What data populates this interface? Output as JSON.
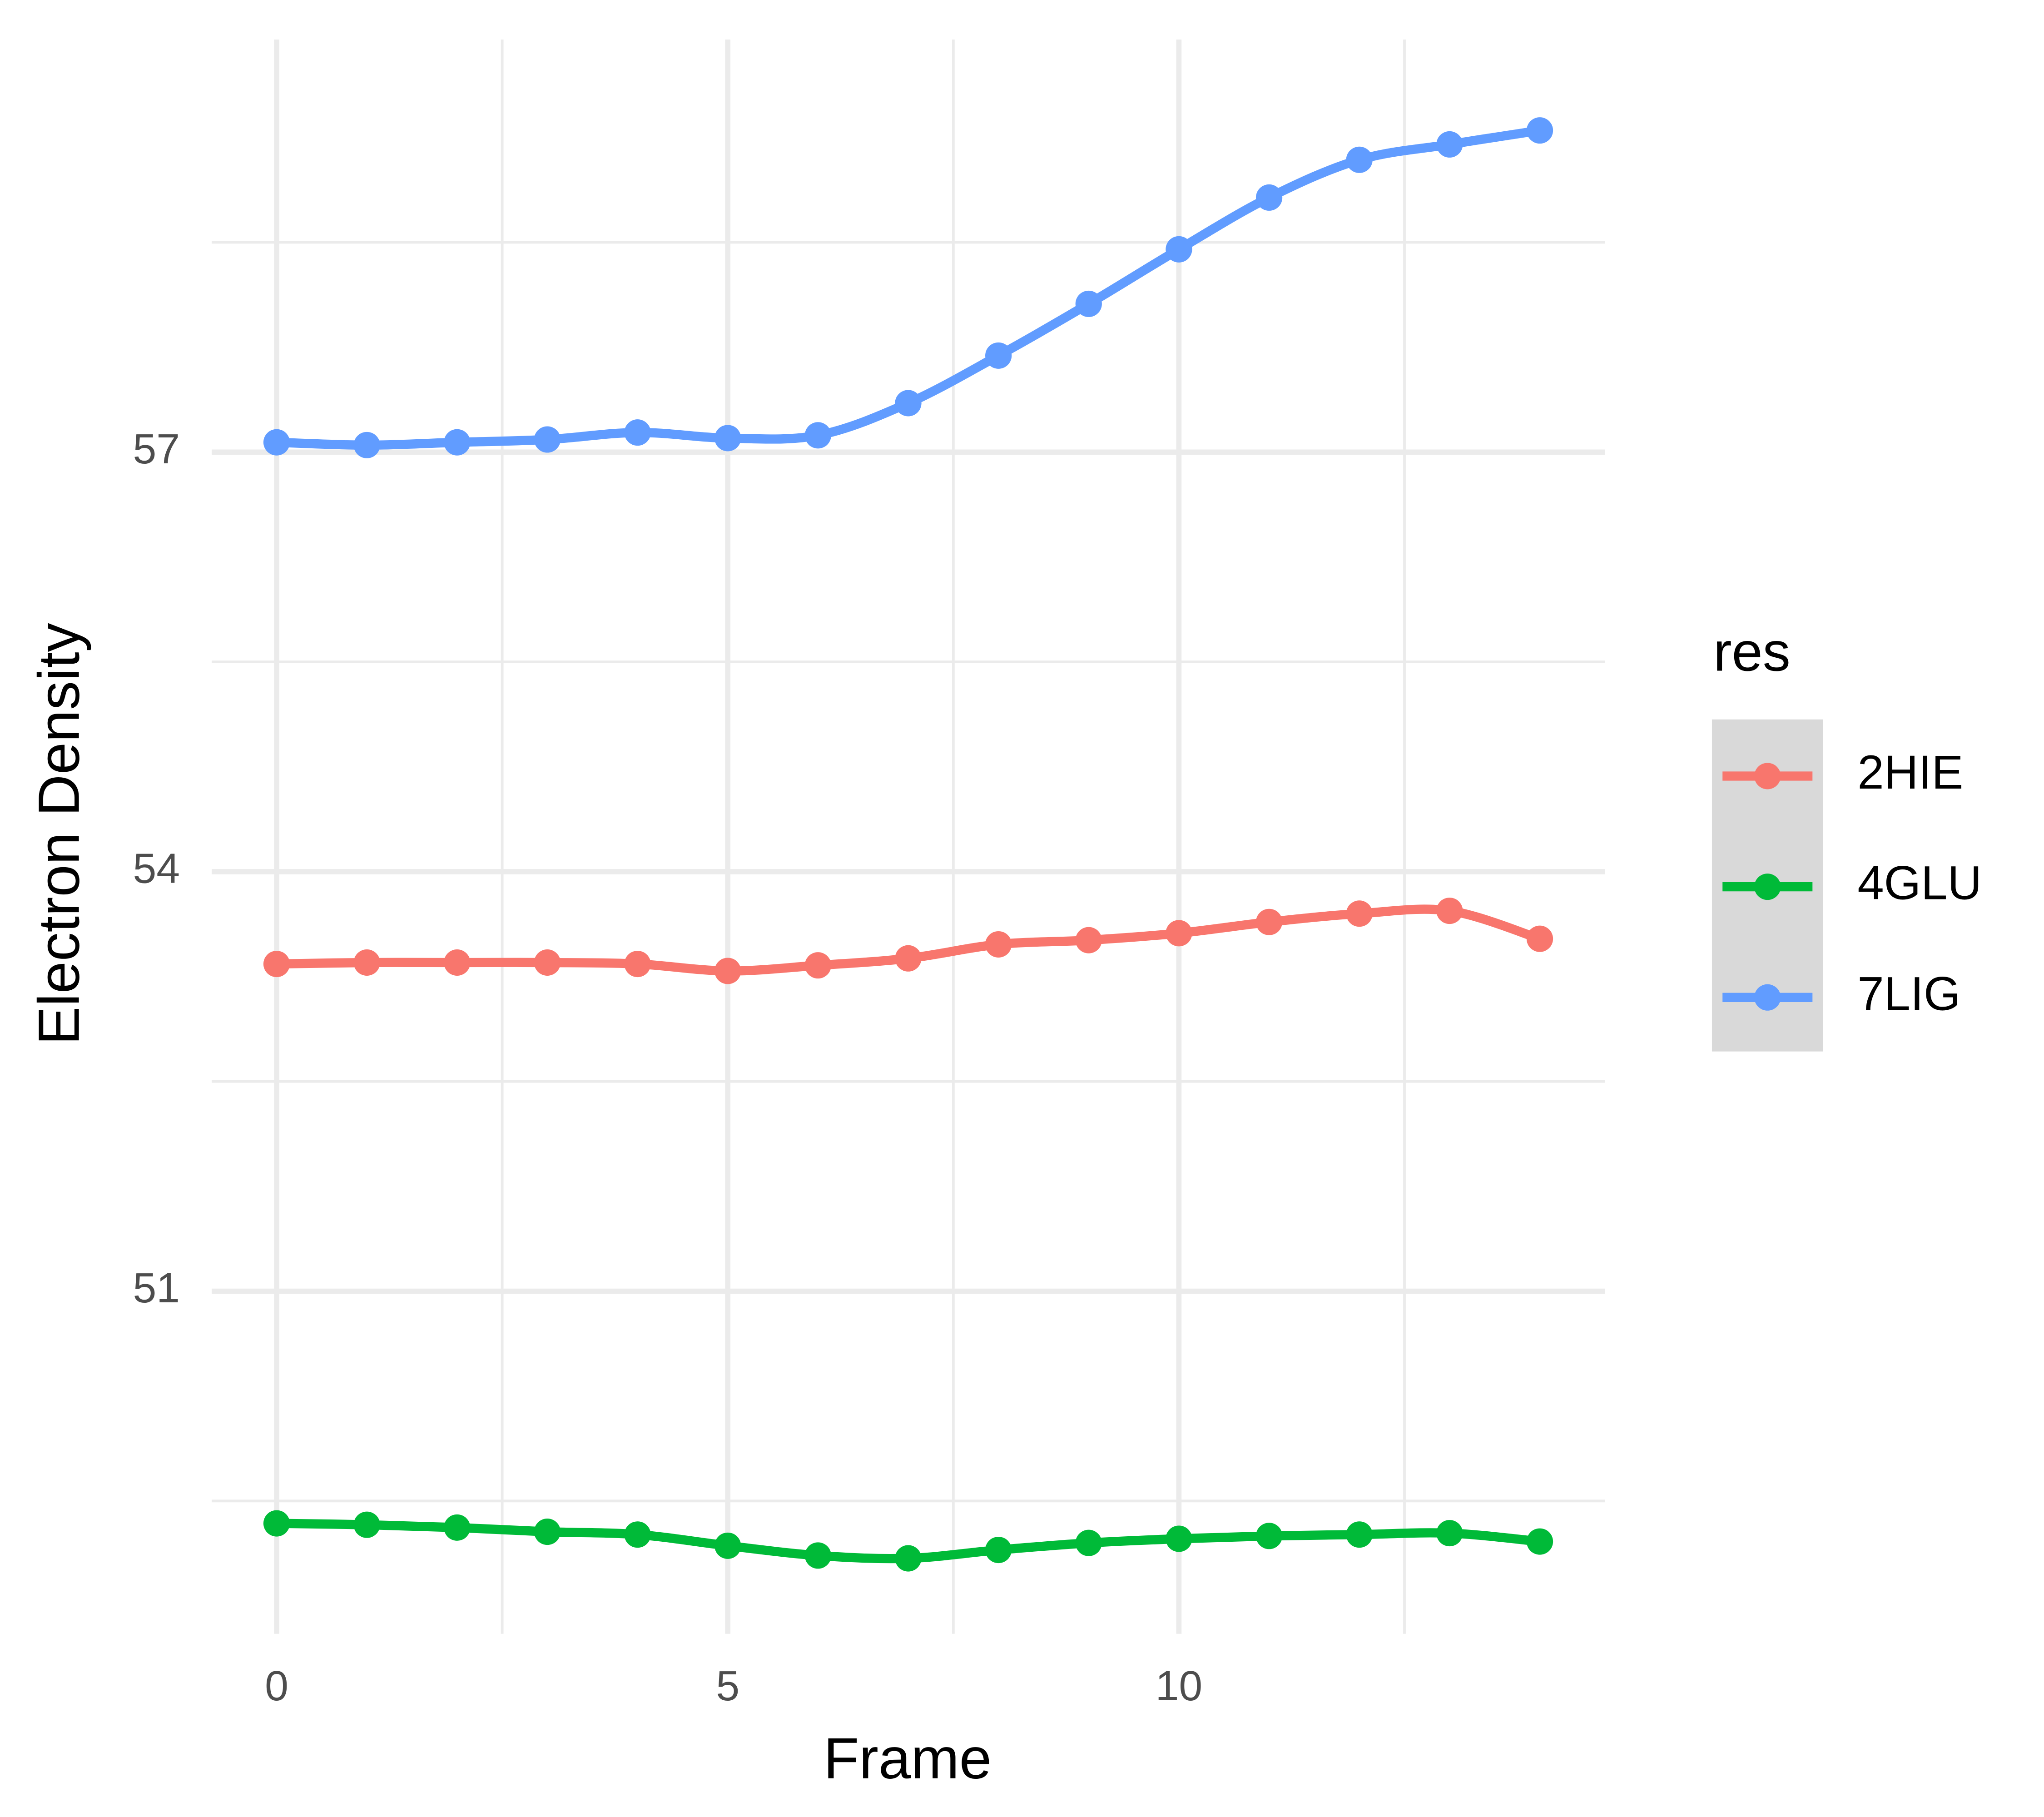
{
  "chart_data": {
    "type": "line",
    "x_label": "Frame",
    "y_label": "Electron Density",
    "legend_title": "res",
    "x": [
      0,
      1,
      2,
      3,
      4,
      5,
      6,
      7,
      8,
      9,
      10,
      11,
      12,
      13,
      14
    ],
    "series": [
      {
        "name": "2HIE",
        "color": "#F8766D",
        "values": [
          53.34,
          53.35,
          53.35,
          53.35,
          53.34,
          53.29,
          53.33,
          53.38,
          53.48,
          53.51,
          53.56,
          53.64,
          53.7,
          53.72,
          53.52
        ]
      },
      {
        "name": "4GLU",
        "color": "#00BA38",
        "values": [
          49.34,
          49.33,
          49.31,
          49.28,
          49.26,
          49.18,
          49.11,
          49.09,
          49.15,
          49.2,
          49.23,
          49.25,
          49.26,
          49.27,
          49.21
        ]
      },
      {
        "name": "7LIG",
        "color": "#619CFF",
        "values": [
          57.07,
          57.05,
          57.07,
          57.09,
          57.14,
          57.1,
          57.12,
          57.35,
          57.69,
          58.06,
          58.45,
          58.82,
          59.09,
          59.2,
          59.3
        ]
      }
    ],
    "xlim": [
      -0.72,
      14.72
    ],
    "xticks": [
      0,
      5,
      10
    ],
    "ylim": [
      48.55,
      59.95
    ],
    "yticks": [
      51,
      54,
      57
    ],
    "grid": true,
    "legend_position": "right"
  }
}
